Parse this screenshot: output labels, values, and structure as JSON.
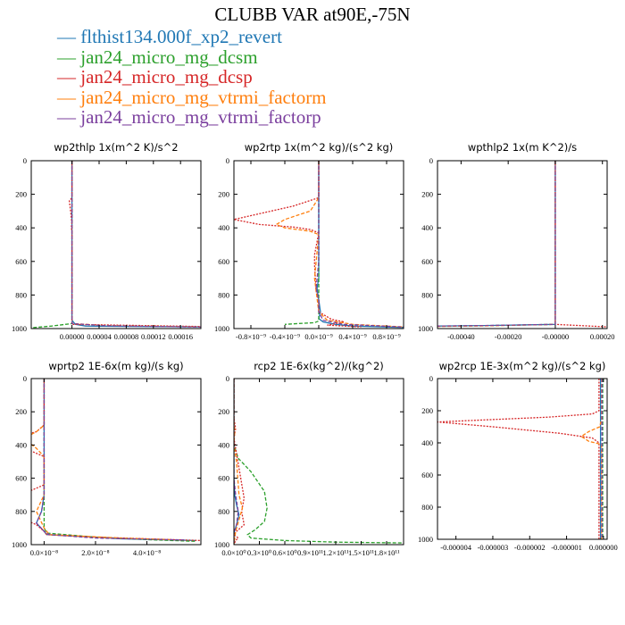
{
  "title": "CLUBB VAR at90E,-75N",
  "legend": [
    {
      "name": "flthist134.000f_xp2_revert",
      "color": "#1f77b4",
      "style": "solid"
    },
    {
      "name": "jan24_micro_mg_dcsm",
      "color": "#2ca02c",
      "style": "dashed"
    },
    {
      "name": "jan24_micro_mg_dcsp",
      "color": "#d62728",
      "style": "dotted"
    },
    {
      "name": "jan24_micro_mg_vtrmi_factorm",
      "color": "#ff7f0e",
      "style": "dashed"
    },
    {
      "name": "jan24_micro_mg_vtrmi_factorp",
      "color": "#7b3f9e",
      "style": "dashed"
    }
  ],
  "chart_data": [
    {
      "type": "line",
      "title": "wp2thlp   1x(m^2 K)/s^2",
      "xlim": [
        -6e-05,
        0.00019
      ],
      "ylim": [
        1000,
        0
      ],
      "xticks": [
        "0.00000",
        "0.00004",
        "0.00008",
        "0.00012",
        "0.00016"
      ],
      "xtick_values": [
        0.0,
        4e-05,
        8e-05,
        0.00012,
        0.00016
      ],
      "yticks": [
        "0",
        "200",
        "400",
        "600",
        "800",
        "1000"
      ],
      "series": [
        {
          "name": "flthist134.000f_xp2_revert",
          "x": [
            0,
            0,
            0,
            5e-06,
            2e-05,
            0.00019
          ],
          "y": [
            0,
            900,
            950,
            975,
            985,
            990
          ]
        },
        {
          "name": "jan24_micro_mg_dcsm",
          "x": [
            0,
            0,
            0,
            -3e-05,
            -6e-05
          ],
          "y": [
            0,
            900,
            970,
            985,
            995
          ]
        },
        {
          "name": "jan24_micro_mg_dcsp",
          "x": [
            0,
            0,
            -4e-06,
            -2e-06,
            0,
            -1e-06,
            0,
            0,
            0,
            0.00019
          ],
          "y": [
            0,
            220,
            240,
            300,
            380,
            395,
            420,
            900,
            975,
            988
          ]
        },
        {
          "name": "jan24_micro_mg_vtrmi_factorm",
          "x": [
            0,
            0,
            0,
            5e-05,
            0.00019
          ],
          "y": [
            0,
            900,
            970,
            982,
            990
          ]
        },
        {
          "name": "jan24_micro_mg_vtrmi_factorp",
          "x": [
            0,
            0,
            0,
            5e-05,
            0.00019
          ],
          "y": [
            0,
            900,
            970,
            983,
            991
          ]
        }
      ]
    },
    {
      "type": "line",
      "title": "wp2rtp   1x(m^2 kg)/(s^2 kg)",
      "xlim": [
        -1e-09,
        1e-09
      ],
      "ylim": [
        1000,
        0
      ],
      "xticks": [
        "-0.8×10⁻⁹",
        "-0.4×10⁻⁹",
        "0.0×10⁻⁹",
        "0.4×10⁻⁹",
        "0.8×10⁻⁹"
      ],
      "xtick_values": [
        -8e-10,
        -4e-10,
        0,
        4e-10,
        8e-10
      ],
      "yticks": [
        "0",
        "200",
        "400",
        "600",
        "800",
        "1000"
      ],
      "series": [
        {
          "name": "flthist134.000f_xp2_revert",
          "x": [
            0,
            0,
            0,
            -2e-11,
            0,
            2e-11,
            0,
            5e-11,
            2e-10,
            4e-10,
            1e-09
          ],
          "y": [
            0,
            600,
            700,
            760,
            830,
            900,
            940,
            960,
            975,
            985,
            993
          ]
        },
        {
          "name": "jan24_micro_mg_dcsm",
          "x": [
            0,
            0,
            0,
            -5e-11,
            -2.5e-10,
            -4e-10
          ],
          "y": [
            0,
            900,
            955,
            965,
            970,
            975
          ]
        },
        {
          "name": "jan24_micro_mg_dcsp",
          "x": [
            0,
            0,
            -3e-10,
            -1e-09,
            -7e-10,
            -3e-10,
            -1e-10,
            0,
            -5e-11,
            -5e-11,
            -3e-11,
            0,
            0,
            1.5e-10,
            3e-10,
            2e-10,
            1e-10,
            5e-10
          ],
          "y": [
            0,
            220,
            270,
            350,
            380,
            395,
            410,
            430,
            560,
            620,
            780,
            830,
            900,
            945,
            960,
            970,
            980,
            990
          ]
        },
        {
          "name": "jan24_micro_mg_vtrmi_factorm",
          "x": [
            0,
            0,
            -1e-10,
            -4e-10,
            -5e-10,
            -4e-10,
            -1e-10,
            0,
            -5e-11,
            0,
            1e-10,
            4e-10,
            1e-09
          ],
          "y": [
            0,
            220,
            300,
            350,
            380,
            400,
            420,
            440,
            700,
            900,
            950,
            975,
            990
          ]
        },
        {
          "name": "jan24_micro_mg_vtrmi_factorp",
          "x": [
            0,
            0,
            -3e-11,
            0,
            0,
            5e-11,
            3e-10,
            1e-09
          ],
          "y": [
            0,
            600,
            760,
            830,
            900,
            950,
            975,
            991
          ]
        }
      ]
    },
    {
      "type": "line",
      "title": "wpthlp2   1x(m K^2)/s",
      "xlim": [
        -0.0005,
        0.00022
      ],
      "ylim": [
        1000,
        0
      ],
      "xticks": [
        "-0.00040",
        "-0.00020",
        "-0.00000",
        "0.00020"
      ],
      "xtick_values": [
        -0.0004,
        -0.0002,
        0,
        0.0002
      ],
      "yticks": [
        "0",
        "200",
        "400",
        "600",
        "800",
        "1000"
      ],
      "series": [
        {
          "name": "flthist134.000f_xp2_revert",
          "x": [
            0,
            0,
            0,
            -0.0003,
            -0.0005
          ],
          "y": [
            0,
            900,
            975,
            982,
            985
          ]
        },
        {
          "name": "jan24_micro_mg_dcsm",
          "x": [
            0,
            0,
            0,
            -0.0003,
            -0.0005
          ],
          "y": [
            0,
            900,
            975,
            983,
            986
          ]
        },
        {
          "name": "jan24_micro_mg_dcsp",
          "x": [
            0,
            0,
            0,
            0.00022
          ],
          "y": [
            0,
            900,
            975,
            990
          ]
        },
        {
          "name": "jan24_micro_mg_vtrmi_factorm",
          "x": [
            0,
            0,
            0,
            -0.0003,
            -0.0005
          ],
          "y": [
            0,
            900,
            975,
            984,
            987
          ]
        },
        {
          "name": "jan24_micro_mg_vtrmi_factorp",
          "x": [
            0,
            0,
            0,
            -0.0003,
            -0.0005
          ],
          "y": [
            0,
            900,
            975,
            982,
            985
          ]
        }
      ]
    },
    {
      "type": "line",
      "title": "wprtp2   1E-6x(m kg)/(s kg)",
      "xlim": [
        -5e-09,
        6.1e-08
      ],
      "ylim": [
        1000,
        0
      ],
      "xticks": [
        "0.0×10⁻⁸",
        "2.0×10⁻⁸",
        "4.0×10⁻⁸"
      ],
      "xtick_values": [
        0,
        2e-08,
        4e-08
      ],
      "yticks": [
        "0",
        "200",
        "400",
        "600",
        "800",
        "1000"
      ],
      "series": [
        {
          "name": "flthist134.000f_xp2_revert",
          "x": [
            0,
            0,
            -1e-09,
            -3e-09,
            0,
            1e-09,
            2e-08,
            3e-08,
            5.9e-08
          ],
          "y": [
            0,
            700,
            800,
            870,
            920,
            940,
            955,
            965,
            975
          ]
        },
        {
          "name": "jan24_micro_mg_dcsm",
          "x": [
            0,
            0,
            0,
            1e-09,
            2e-08,
            4e-08,
            5.9e-08
          ],
          "y": [
            0,
            700,
            900,
            930,
            955,
            970,
            980
          ]
        },
        {
          "name": "jan24_micro_mg_dcsp",
          "x": [
            0,
            0,
            -3e-09,
            -1.7e-08,
            -6e-09,
            0,
            0,
            -6e-09,
            -1.8e-08,
            -1.2e-08,
            -3e-09,
            0,
            1e-09,
            2e-08,
            4e-08,
            6.1e-08
          ],
          "y": [
            0,
            280,
            320,
            380,
            430,
            470,
            640,
            680,
            760,
            820,
            880,
            920,
            940,
            955,
            965,
            975
          ]
        },
        {
          "name": "jan24_micro_mg_vtrmi_factorm",
          "x": [
            0,
            0,
            -3e-09,
            -8e-09,
            -3e-09,
            0,
            0,
            -3e-09,
            0,
            2e-09,
            3e-08,
            5e-08
          ],
          "y": [
            0,
            280,
            320,
            360,
            420,
            470,
            700,
            800,
            900,
            940,
            960,
            970
          ]
        },
        {
          "name": "jan24_micro_mg_vtrmi_factorp",
          "x": [
            0,
            0,
            -1e-09,
            -3e-09,
            0,
            2e-09,
            2e-08,
            5.5e-08
          ],
          "y": [
            0,
            700,
            800,
            870,
            920,
            940,
            960,
            972
          ]
        }
      ]
    },
    {
      "type": "line",
      "title": "rcp2   1E-6x(kg^2)/(kg^2)",
      "xlim": [
        0,
        2e-11
      ],
      "ylim": [
        1000,
        0
      ],
      "xticks": [
        "0.0×10⁰",
        "0.3×10⁰",
        "0.6×10⁰",
        "0.9×10¹¹",
        "1.2×10¹¹",
        "1.5×10¹¹",
        "1.8×10¹¹"
      ],
      "xtick_values": [
        0,
        3e-12,
        6e-12,
        9e-12,
        1.2e-11,
        1.5e-11,
        1.8e-11
      ],
      "yticks": [
        "0",
        "200",
        "400",
        "600",
        "800",
        "1000"
      ],
      "series": [
        {
          "name": "flthist134.000f_xp2_revert",
          "x": [
            0,
            0,
            1e-13,
            3e-13,
            6e-13,
            3e-13,
            0,
            0
          ],
          "y": [
            0,
            600,
            700,
            760,
            820,
            880,
            930,
            1000
          ]
        },
        {
          "name": "jan24_micro_mg_dcsm",
          "x": [
            0,
            0,
            5e-13,
            2e-12,
            3.6e-12,
            3.9e-12,
            3.6e-12,
            2.5e-12,
            1.6e-12,
            2e-12,
            6e-12,
            1.2e-11,
            2e-11
          ],
          "y": [
            0,
            400,
            480,
            560,
            680,
            780,
            860,
            910,
            940,
            960,
            975,
            985,
            990
          ]
        },
        {
          "name": "jan24_micro_mg_dcsp",
          "x": [
            0,
            0,
            2e-13,
            0,
            3e-13,
            1.2e-12,
            9e-13,
            1.2e-12,
            3e-13,
            0,
            5e-13,
            2e-13,
            0
          ],
          "y": [
            0,
            240,
            300,
            360,
            450,
            720,
            800,
            880,
            920,
            940,
            960,
            975,
            1000
          ]
        },
        {
          "name": "jan24_micro_mg_vtrmi_factorm",
          "x": [
            0,
            0,
            1e-13,
            0,
            3e-13,
            6e-13,
            1e-12,
            6e-13,
            2e-13,
            0
          ],
          "y": [
            0,
            250,
            320,
            400,
            500,
            700,
            780,
            850,
            920,
            1000
          ]
        },
        {
          "name": "jan24_micro_mg_vtrmi_factorp",
          "x": [
            0,
            0,
            2e-13,
            5e-13,
            3e-13,
            0,
            0
          ],
          "y": [
            0,
            600,
            700,
            800,
            880,
            930,
            1000
          ]
        }
      ]
    },
    {
      "type": "line",
      "title": "wp2rcp   1E-3x(m^2 kg)/(s^2 kg)",
      "xlim": [
        -4.5e-06,
        1e-07
      ],
      "ylim": [
        1000,
        0
      ],
      "xticks": [
        "-0.000004",
        "-0.000003",
        "-0.000002",
        "-0.000001",
        "0.000000"
      ],
      "xtick_values": [
        -4e-06,
        -3e-06,
        -2e-06,
        -1e-06,
        0
      ],
      "yticks": [
        "0",
        "200",
        "400",
        "600",
        "800",
        "1000"
      ],
      "series": [
        {
          "name": "flthist134.000f_xp2_revert",
          "x": [
            -8e-08,
            -8e-08,
            -8e-08
          ],
          "y": [
            0,
            500,
            1000
          ]
        },
        {
          "name": "jan24_micro_mg_dcsm",
          "x": [
            -2e-08,
            -2e-08,
            -2e-08
          ],
          "y": [
            0,
            500,
            1000
          ]
        },
        {
          "name": "jan24_micro_mg_dcsp",
          "x": [
            -1.2e-07,
            -1.2e-07,
            -3e-07,
            -1.5e-06,
            -4.5e-06,
            -3e-06,
            -1.2e-06,
            -3e-07,
            -1.2e-07,
            -1.2e-07
          ],
          "y": [
            0,
            200,
            220,
            240,
            270,
            300,
            340,
            370,
            400,
            1000
          ]
        },
        {
          "name": "jan24_micro_mg_vtrmi_factorm",
          "x": [
            -5e-08,
            -5e-08,
            -1e-07,
            -4e-07,
            -6e-07,
            -4e-07,
            -5e-08,
            -5e-08
          ],
          "y": [
            0,
            250,
            300,
            330,
            360,
            390,
            410,
            1000
          ]
        },
        {
          "name": "jan24_micro_mg_vtrmi_factorp",
          "x": [
            -4e-08,
            -4e-08,
            -4e-08
          ],
          "y": [
            0,
            500,
            1000
          ]
        }
      ]
    }
  ]
}
